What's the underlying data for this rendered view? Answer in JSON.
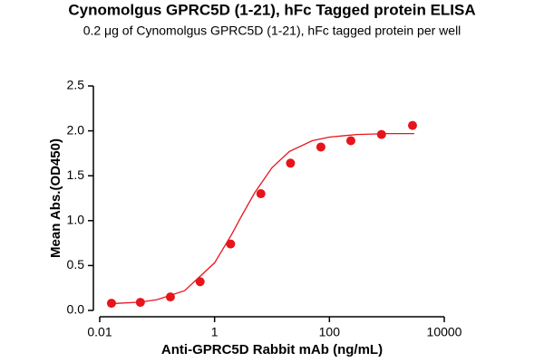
{
  "chart_data": {
    "type": "scatter",
    "title": "Cynomolgus GPRC5D (1-21), hFc Tagged protein ELISA",
    "subtitle": "0.2 μg of Cynomolgus GPRC5D (1-21), hFc tagged protein per well",
    "x_label": "Anti-GPRC5D Rabbit mAb (ng/mL)",
    "y_label": "Mean Abs.(OD450)",
    "x": [
      0.016,
      0.051,
      0.17,
      0.56,
      1.9,
      6.4,
      21,
      71,
      236,
      806,
      2800
    ],
    "series": [
      {
        "color": "#e8141b",
        "values": [
          0.08,
          0.09,
          0.15,
          0.32,
          0.74,
          1.3,
          1.64,
          1.82,
          1.89,
          1.96,
          2.06
        ]
      }
    ],
    "fit": {
      "color": "#e8141b",
      "x": [
        0.016,
        0.05,
        0.1,
        0.3,
        1,
        2,
        3,
        5,
        10,
        20,
        50,
        100,
        300,
        1000,
        3000
      ],
      "values": [
        0.076,
        0.092,
        0.12,
        0.22,
        0.53,
        0.85,
        1.06,
        1.31,
        1.59,
        1.77,
        1.89,
        1.93,
        1.96,
        1.97,
        1.97
      ]
    },
    "x_log": true,
    "xlim": [
      0.01,
      10000
    ],
    "xticks": [
      0.01,
      1,
      100,
      10000
    ],
    "ylim": [
      0,
      2.5
    ],
    "yticks": [
      {
        "value": 0,
        "label": "0.0"
      },
      0.5,
      {
        "value": 1,
        "label": "1.0"
      },
      1.5,
      {
        "value": 2,
        "label": "2.0"
      },
      2.5
    ]
  }
}
